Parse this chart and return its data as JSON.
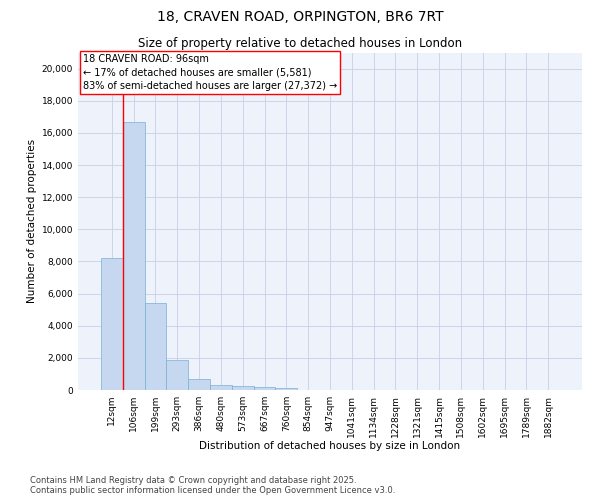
{
  "title_line1": "18, CRAVEN ROAD, ORPINGTON, BR6 7RT",
  "title_line2": "Size of property relative to detached houses in London",
  "xlabel": "Distribution of detached houses by size in London",
  "ylabel": "Number of detached properties",
  "categories": [
    "12sqm",
    "106sqm",
    "199sqm",
    "293sqm",
    "386sqm",
    "480sqm",
    "573sqm",
    "667sqm",
    "760sqm",
    "854sqm",
    "947sqm",
    "1041sqm",
    "1134sqm",
    "1228sqm",
    "1321sqm",
    "1415sqm",
    "1508sqm",
    "1602sqm",
    "1695sqm",
    "1789sqm",
    "1882sqm"
  ],
  "values": [
    8200,
    16700,
    5400,
    1850,
    700,
    330,
    270,
    190,
    150,
    0,
    0,
    0,
    0,
    0,
    0,
    0,
    0,
    0,
    0,
    0,
    0
  ],
  "bar_color": "#c5d8f0",
  "bar_edge_color": "#7aaed4",
  "background_color": "#eef2fa",
  "grid_color": "#c8d0e8",
  "annotation_line1": "18 CRAVEN ROAD: 96sqm",
  "annotation_line2": "← 17% of detached houses are smaller (5,581)",
  "annotation_line3": "83% of semi-detached houses are larger (27,372) →",
  "annotation_box_color": "red",
  "property_line_x": 0.5,
  "ylim": [
    0,
    21000
  ],
  "yticks": [
    0,
    2000,
    4000,
    6000,
    8000,
    10000,
    12000,
    14000,
    16000,
    18000,
    20000
  ],
  "footnote": "Contains HM Land Registry data © Crown copyright and database right 2025.\nContains public sector information licensed under the Open Government Licence v3.0.",
  "title_fontsize": 10,
  "subtitle_fontsize": 8.5,
  "axis_label_fontsize": 7.5,
  "tick_fontsize": 6.5,
  "annotation_fontsize": 7,
  "footnote_fontsize": 6
}
